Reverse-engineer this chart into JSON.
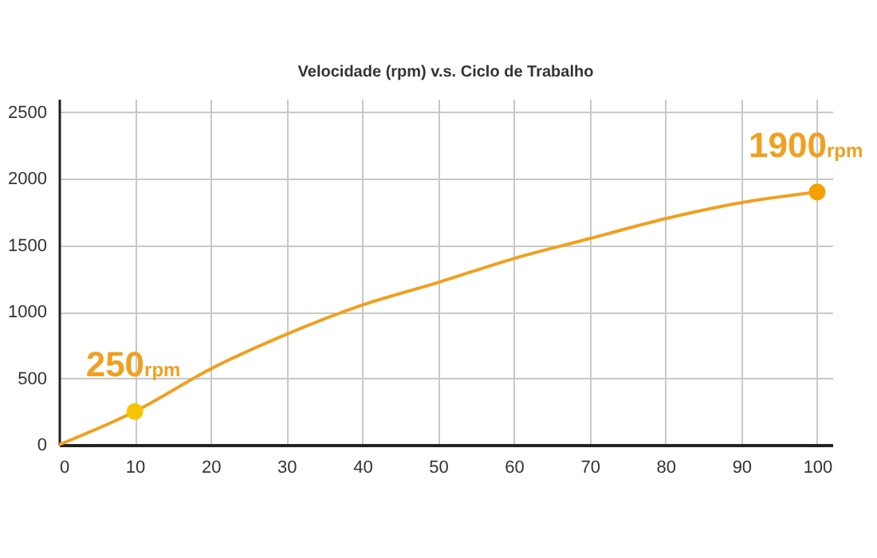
{
  "chart_data": {
    "type": "line",
    "title": "Velocidade (rpm)  v.s.  Ciclo de Trabalho",
    "xlim": [
      0,
      102
    ],
    "xticks": [
      0,
      10,
      20,
      30,
      40,
      50,
      60,
      70,
      80,
      90,
      100
    ],
    "ylim": [
      0,
      2600
    ],
    "yticks": [
      0,
      500,
      1000,
      1500,
      2000,
      2500
    ],
    "grid": true,
    "line_style": "solid",
    "series": [
      {
        "color": "#f0a020",
        "x": [
          0,
          10,
          20,
          30,
          40,
          50,
          60,
          70,
          80,
          90,
          100
        ],
        "values": [
          0,
          250,
          570,
          830,
          1050,
          1220,
          1400,
          1550,
          1700,
          1820,
          1900
        ]
      },
      {
        "type": "scatter",
        "marker": "circle",
        "colors": [
          "#f8c400",
          "#f5a000"
        ],
        "x": [
          10,
          100
        ],
        "values": [
          250,
          1900
        ]
      }
    ],
    "annotations": [
      {
        "text": "250$_{rpm}$",
        "x": 10,
        "y": 250
      },
      {
        "text": "1900$_{rpm}$",
        "x": 100,
        "y": 1900
      }
    ]
  }
}
